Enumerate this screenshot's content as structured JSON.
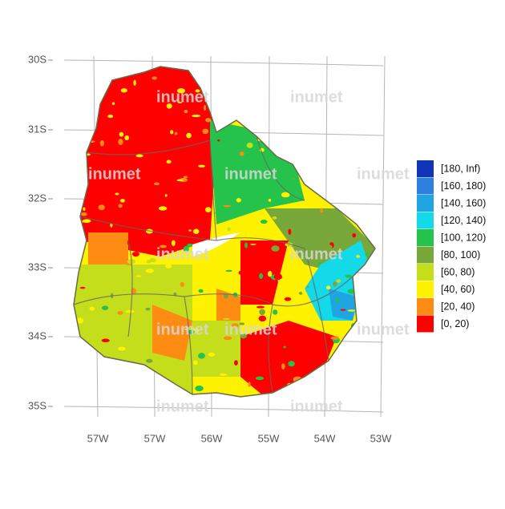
{
  "map": {
    "y_labels": [
      "30S",
      "31S",
      "32S",
      "33S",
      "34S",
      "35S"
    ],
    "x_labels": [
      "57W",
      "57W",
      "56W",
      "55W",
      "54W",
      "53W"
    ],
    "watermark": "inumet",
    "legend": [
      {
        "label": "[180, Inf)",
        "color": "#1034b8"
      },
      {
        "label": "[160, 180)",
        "color": "#2d7fe0"
      },
      {
        "label": "[140, 160)",
        "color": "#1fa6e2"
      },
      {
        "label": "[120, 140)",
        "color": "#14d9e8"
      },
      {
        "label": "[100, 120)",
        "color": "#25c34b"
      },
      {
        "label": "[80, 100)",
        "color": "#79a83a"
      },
      {
        "label": "[60, 80)",
        "color": "#c5de1c"
      },
      {
        "label": "[40, 60)",
        "color": "#fff200"
      },
      {
        "label": "[20, 40)",
        "color": "#ff8c12"
      },
      {
        "label": "[0, 20)",
        "color": "#ff0000"
      }
    ]
  }
}
